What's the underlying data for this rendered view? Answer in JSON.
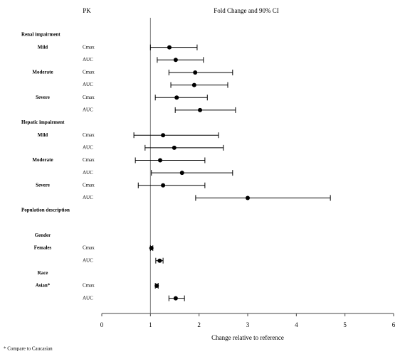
{
  "chart_data": {
    "type": "forest",
    "pk_header": "PK",
    "title": "Fold Change and 90% CI",
    "xlabel": "Change relative to reference",
    "footnote": "* Compare to Caucasian",
    "xlim": [
      0,
      6
    ],
    "xticks": [
      0,
      1,
      2,
      3,
      4,
      5,
      6
    ],
    "reference": 1,
    "color": "#000000",
    "rows": [
      {
        "section": "Renal impairment"
      },
      {
        "group": "Mild",
        "pk": "Cmax",
        "value": 1.39,
        "lower": 1.0,
        "upper": 1.96
      },
      {
        "pk": "AUC",
        "value": 1.52,
        "lower": 1.14,
        "upper": 2.09
      },
      {
        "group": "Moderate",
        "pk": "Cmax",
        "value": 1.92,
        "lower": 1.38,
        "upper": 2.69
      },
      {
        "pk": "AUC",
        "value": 1.9,
        "lower": 1.42,
        "upper": 2.59
      },
      {
        "group": "Severe",
        "pk": "Cmax",
        "value": 1.54,
        "lower": 1.1,
        "upper": 2.17
      },
      {
        "pk": "AUC",
        "value": 2.02,
        "lower": 1.51,
        "upper": 2.75
      },
      {
        "section": "Hepatic impairment"
      },
      {
        "group": "Mild",
        "pk": "Cmax",
        "value": 1.26,
        "lower": 0.66,
        "upper": 2.4
      },
      {
        "pk": "AUC",
        "value": 1.49,
        "lower": 0.89,
        "upper": 2.5
      },
      {
        "group": "Moderate",
        "pk": "Cmax",
        "value": 1.2,
        "lower": 0.69,
        "upper": 2.12
      },
      {
        "pk": "AUC",
        "value": 1.65,
        "lower": 1.02,
        "upper": 2.69
      },
      {
        "group": "Severe",
        "pk": "Cmax",
        "value": 1.26,
        "lower": 0.75,
        "upper": 2.12
      },
      {
        "pk": "AUC",
        "value": 3.0,
        "lower": 1.93,
        "upper": 4.7
      },
      {
        "section": "Population description"
      },
      {},
      {
        "group": "Gender"
      },
      {
        "group": "Females",
        "pk": "Cmax",
        "value": 1.02,
        "lower": 1.0,
        "upper": 1.05
      },
      {
        "pk": "AUC",
        "value": 1.19,
        "lower": 1.11,
        "upper": 1.26
      },
      {
        "group": "Race"
      },
      {
        "group": "Asian*",
        "pk": "Cmax",
        "value": 1.13,
        "lower": 1.1,
        "upper": 1.16
      },
      {
        "pk": "AUC",
        "value": 1.52,
        "lower": 1.38,
        "upper": 1.7
      }
    ]
  }
}
